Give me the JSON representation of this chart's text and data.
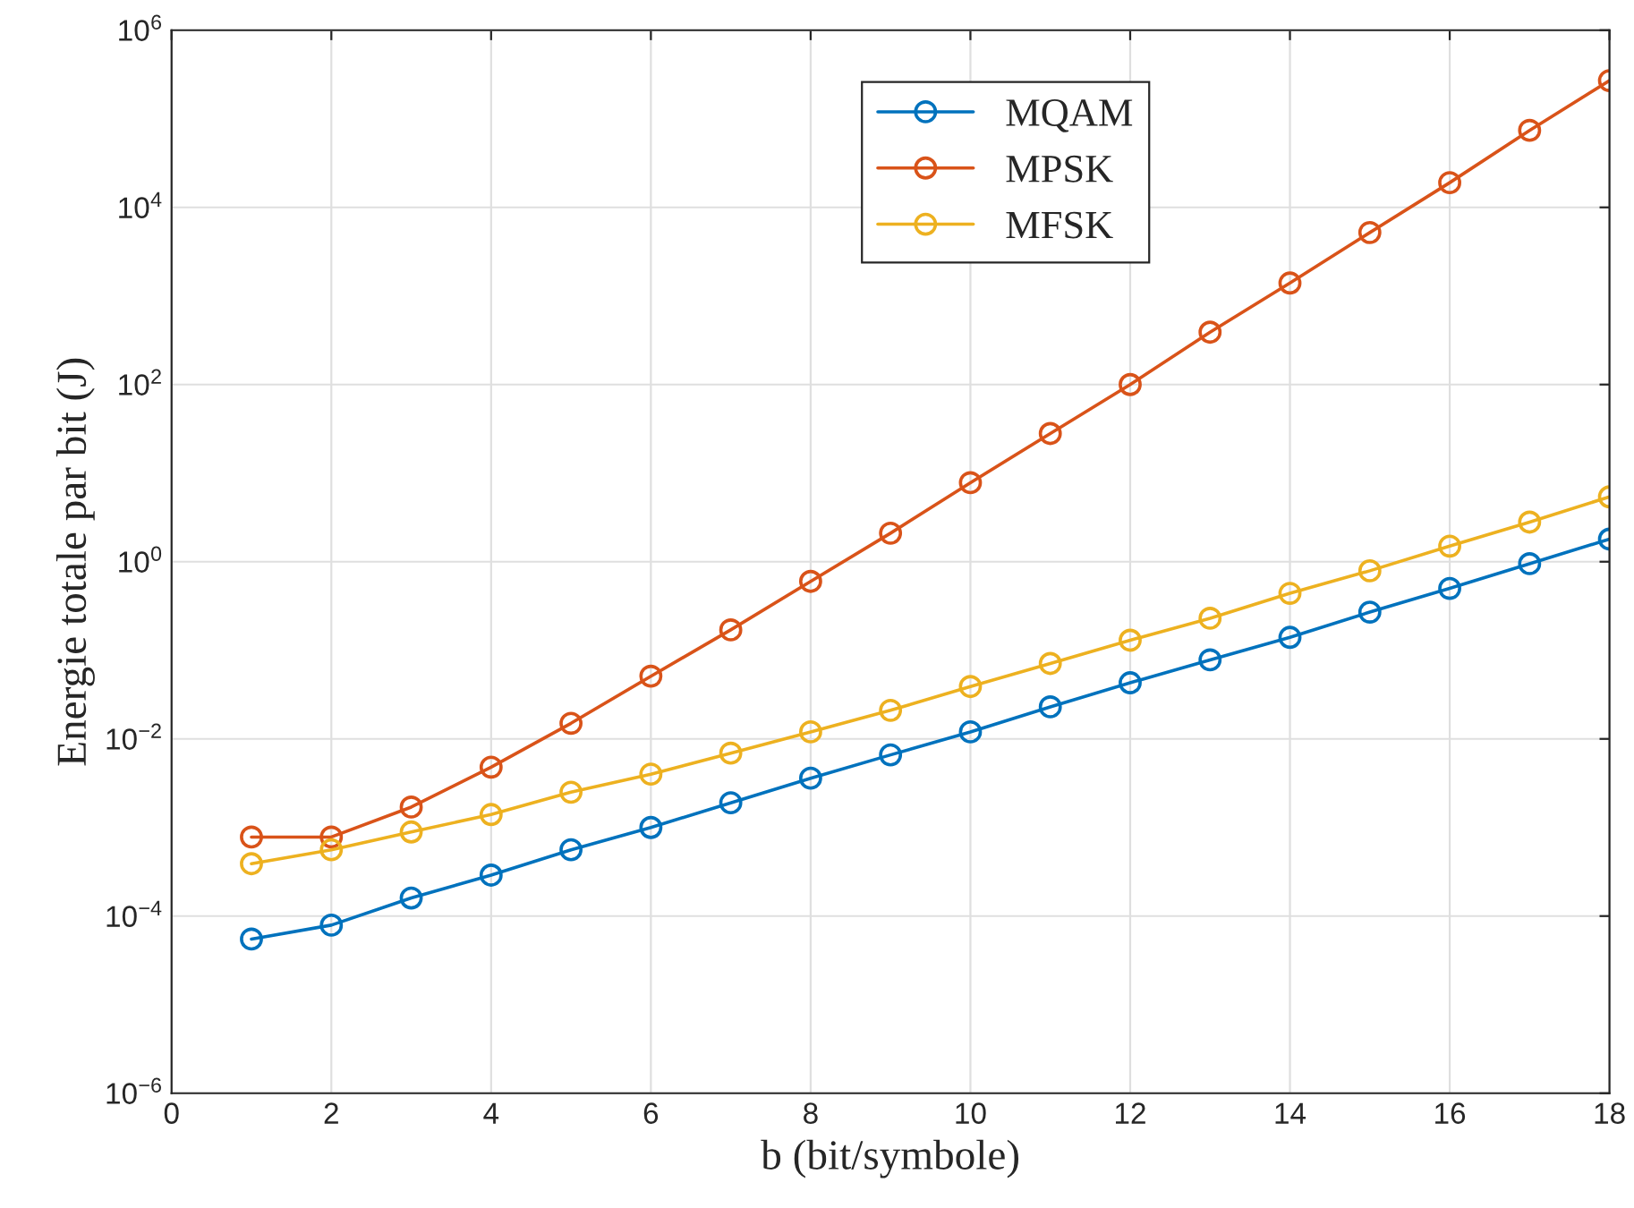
{
  "chart_data": {
    "type": "line",
    "xlabel": "b (bit/symbole)",
    "ylabel": "Energie totale par bit (J)",
    "x": [
      1,
      2,
      3,
      4,
      5,
      6,
      7,
      8,
      9,
      10,
      11,
      12,
      13,
      14,
      15,
      16,
      17,
      18
    ],
    "series": [
      {
        "name": "MQAM",
        "color": "#0072bd",
        "values": [
          5.5e-05,
          7.9e-05,
          0.00016,
          0.00029,
          0.00056,
          0.001,
          0.0019,
          0.0036,
          0.0066,
          0.012,
          0.023,
          0.043,
          0.078,
          0.14,
          0.27,
          0.5,
          0.95,
          1.8
        ]
      },
      {
        "name": "MPSK",
        "color": "#d95319",
        "values": [
          0.00078,
          0.00078,
          0.0017,
          0.0048,
          0.015,
          0.051,
          0.17,
          0.6,
          2.1,
          7.8,
          28,
          100,
          390,
          1400,
          5200,
          19000,
          74000,
          270000
        ]
      },
      {
        "name": "MFSK",
        "color": "#edb120",
        "values": [
          0.00039,
          0.00056,
          0.00089,
          0.0014,
          0.0025,
          0.004,
          0.0069,
          0.012,
          0.021,
          0.039,
          0.071,
          0.13,
          0.23,
          0.44,
          0.79,
          1.5,
          2.8,
          5.4
        ]
      }
    ],
    "log": "y",
    "xlim": [
      0,
      18
    ],
    "xticks": [
      0,
      2,
      4,
      6,
      8,
      10,
      12,
      14,
      16,
      18
    ],
    "ylim": [
      1e-06,
      1000000.0
    ],
    "yticks": [
      {
        "value": 1e-06,
        "label": "10$^{−6}$"
      },
      {
        "value": 0.0001,
        "label": "10$^{−4}$"
      },
      {
        "value": 0.01,
        "label": "10$^{−2}$"
      },
      {
        "value": 1,
        "label": "10$^{0}$"
      },
      {
        "value": 100,
        "label": "10$^{2}$"
      },
      {
        "value": 10000,
        "label": "10$^{4}$"
      },
      {
        "value": 1000000,
        "label": "10$^{6}$"
      }
    ],
    "grid": true,
    "legend": "top",
    "marker": "circle",
    "line_style": "solid"
  }
}
